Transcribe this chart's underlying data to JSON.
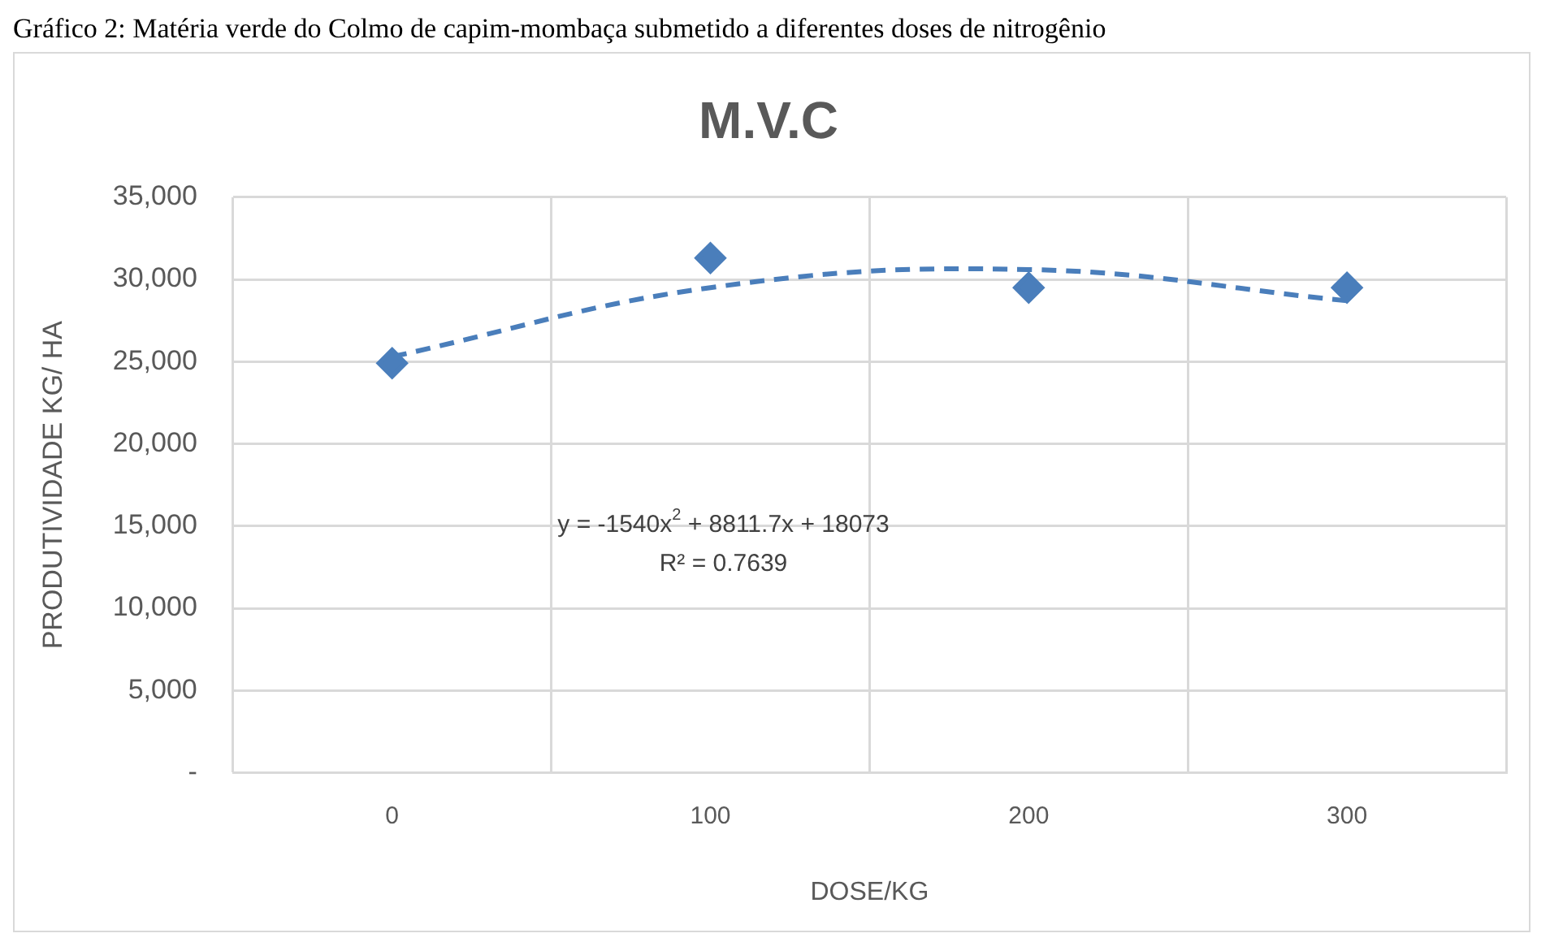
{
  "chart_data": {
    "type": "scatter",
    "title": "M.V.C",
    "xlabel": "DOSE/KG",
    "ylabel": "PRODUTIVIDADE KG/ HA",
    "categories": [
      "0",
      "100",
      "200",
      "300"
    ],
    "series": [
      {
        "type": "scatter",
        "color": "#4a7ebb",
        "marker": "diamond",
        "values": [
          24900,
          31300,
          29500,
          29500
        ]
      },
      {
        "type": "line",
        "color": "#4a7ebb",
        "marker": "none",
        "line_style": "dashed",
        "values": [
          25300,
          29500,
          30600,
          28700
        ]
      }
    ],
    "ylim": [
      0,
      35000
    ],
    "yticks": [
      {
        "value": 0,
        "label": "-"
      },
      {
        "value": 5000,
        "label": "5,000"
      },
      {
        "value": 10000,
        "label": "10,000"
      },
      {
        "value": 15000,
        "label": "15,000"
      },
      {
        "value": 20000,
        "label": "20,000"
      },
      {
        "value": 25000,
        "label": "25,000"
      },
      {
        "value": 30000,
        "label": "30,000"
      },
      {
        "value": 35000,
        "label": "35,000"
      }
    ],
    "grid": true,
    "legend": false,
    "annotations": [
      "Gráfico 2: Matéria verde do Colmo de capim-mombaça submetido a diferentes doses de nitrogênio",
      "y = -1540x$^{2}$ + 8811.7x + 18073",
      "R² = 0.7639"
    ]
  }
}
